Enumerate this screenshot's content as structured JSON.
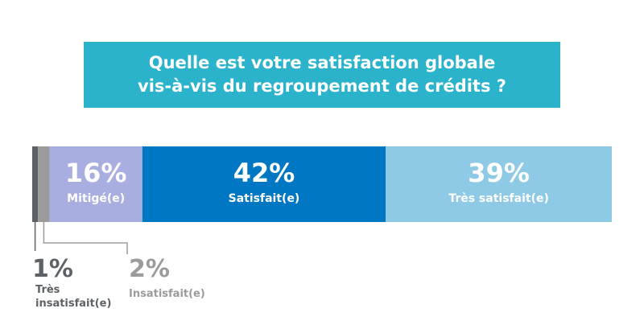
{
  "title": {
    "line1": "Quelle est votre satisfaction globale",
    "line2": "vis-à-vis du regroupement de crédits ?"
  },
  "chart_data": {
    "type": "bar",
    "orientation": "horizontal-stacked",
    "categories": [
      "Très insatisfait(e)",
      "Insatisfait(e)",
      "Mitigé(e)",
      "Satisfait(e)",
      "Très satisfait(e)"
    ],
    "values": [
      1,
      2,
      16,
      42,
      39
    ],
    "value_labels": [
      "1%",
      "2%",
      "16%",
      "42%",
      "39%"
    ],
    "label_lines": [
      [
        "Très",
        "insatisfait(e)"
      ],
      [
        "Insatisfait(e)"
      ],
      [
        "Mitigé(e)"
      ],
      [
        "Satisfait(e)"
      ],
      [
        "Très satisfait(e)"
      ]
    ],
    "colors": [
      "#5d6266",
      "#9b9b9b",
      "#a9aee0",
      "#0077c2",
      "#8ecae6"
    ],
    "label_colors": [
      "#5d6266",
      "#9b9b9b",
      "#ffffff",
      "#ffffff",
      "#ffffff"
    ],
    "total": 100
  }
}
